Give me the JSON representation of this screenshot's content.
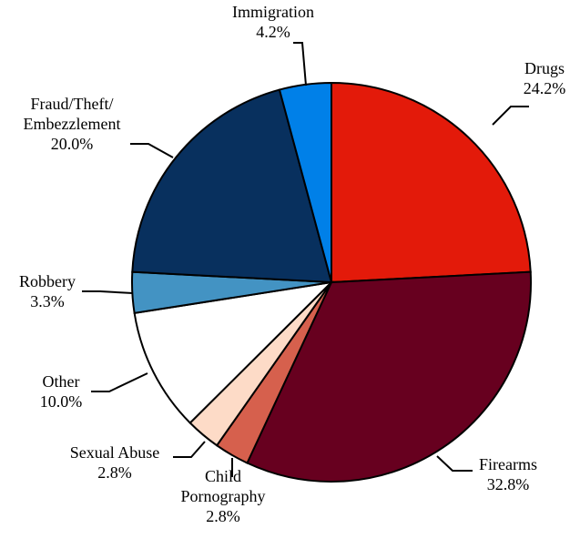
{
  "chart_data": {
    "type": "pie",
    "start_angle_deg": 0,
    "direction": "clockwise",
    "slices": [
      {
        "label": [
          "Drugs"
        ],
        "value_label": "24.2%",
        "value": 24.2,
        "color": "#E31A0A"
      },
      {
        "label": [
          "Firearms"
        ],
        "value_label": "32.8%",
        "value": 32.8,
        "color": "#67001F"
      },
      {
        "label": [
          "Child",
          "Pornography"
        ],
        "value_label": "2.8%",
        "value": 2.8,
        "color": "#D6604D"
      },
      {
        "label": [
          "Sexual Abuse"
        ],
        "value_label": "2.8%",
        "value": 2.8,
        "color": "#FDDBC7"
      },
      {
        "label": [
          "Other"
        ],
        "value_label": "10.0%",
        "value": 10.0,
        "color": "#FFFFFF"
      },
      {
        "label": [
          "Robbery"
        ],
        "value_label": "3.3%",
        "value": 3.3,
        "color": "#4393C3"
      },
      {
        "label": [
          "Fraud/Theft/",
          "Embezzlement"
        ],
        "value_label": "20.0%",
        "value": 20.0,
        "color": "#08305E"
      },
      {
        "label": [
          "Immigration"
        ],
        "value_label": "4.2%",
        "value": 4.2,
        "color": "#0080E8"
      }
    ]
  }
}
